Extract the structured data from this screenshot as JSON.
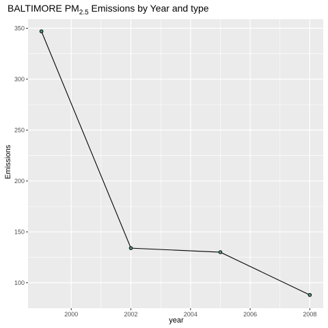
{
  "chart_data": {
    "type": "line",
    "title_prefix": "BALTIMORE PM",
    "title_subscript": "2.5",
    "title_suffix": " Emissions by Year and type",
    "xlabel": "year",
    "ylabel": "Emissions",
    "x": [
      1999,
      2002,
      2005,
      2008
    ],
    "y": [
      347,
      134,
      130,
      88
    ],
    "xlim": [
      1998.55,
      2008.45
    ],
    "ylim": [
      75,
      359
    ],
    "xticks": [
      2000,
      2002,
      2004,
      2006,
      2008
    ],
    "xtick_labels": [
      "2000",
      "2002",
      "2004",
      "2006",
      "2008"
    ],
    "yticks": [
      100,
      150,
      200,
      250,
      300,
      350
    ],
    "ytick_labels": [
      "100",
      "150",
      "200",
      "250",
      "300",
      "350"
    ],
    "grid": true,
    "legend": "none",
    "colors": {
      "panel": "#ebebeb",
      "grid_major": "#ffffff",
      "line": "#000000",
      "point_fill": "#4e9a78",
      "point_stroke": "#000000"
    }
  }
}
